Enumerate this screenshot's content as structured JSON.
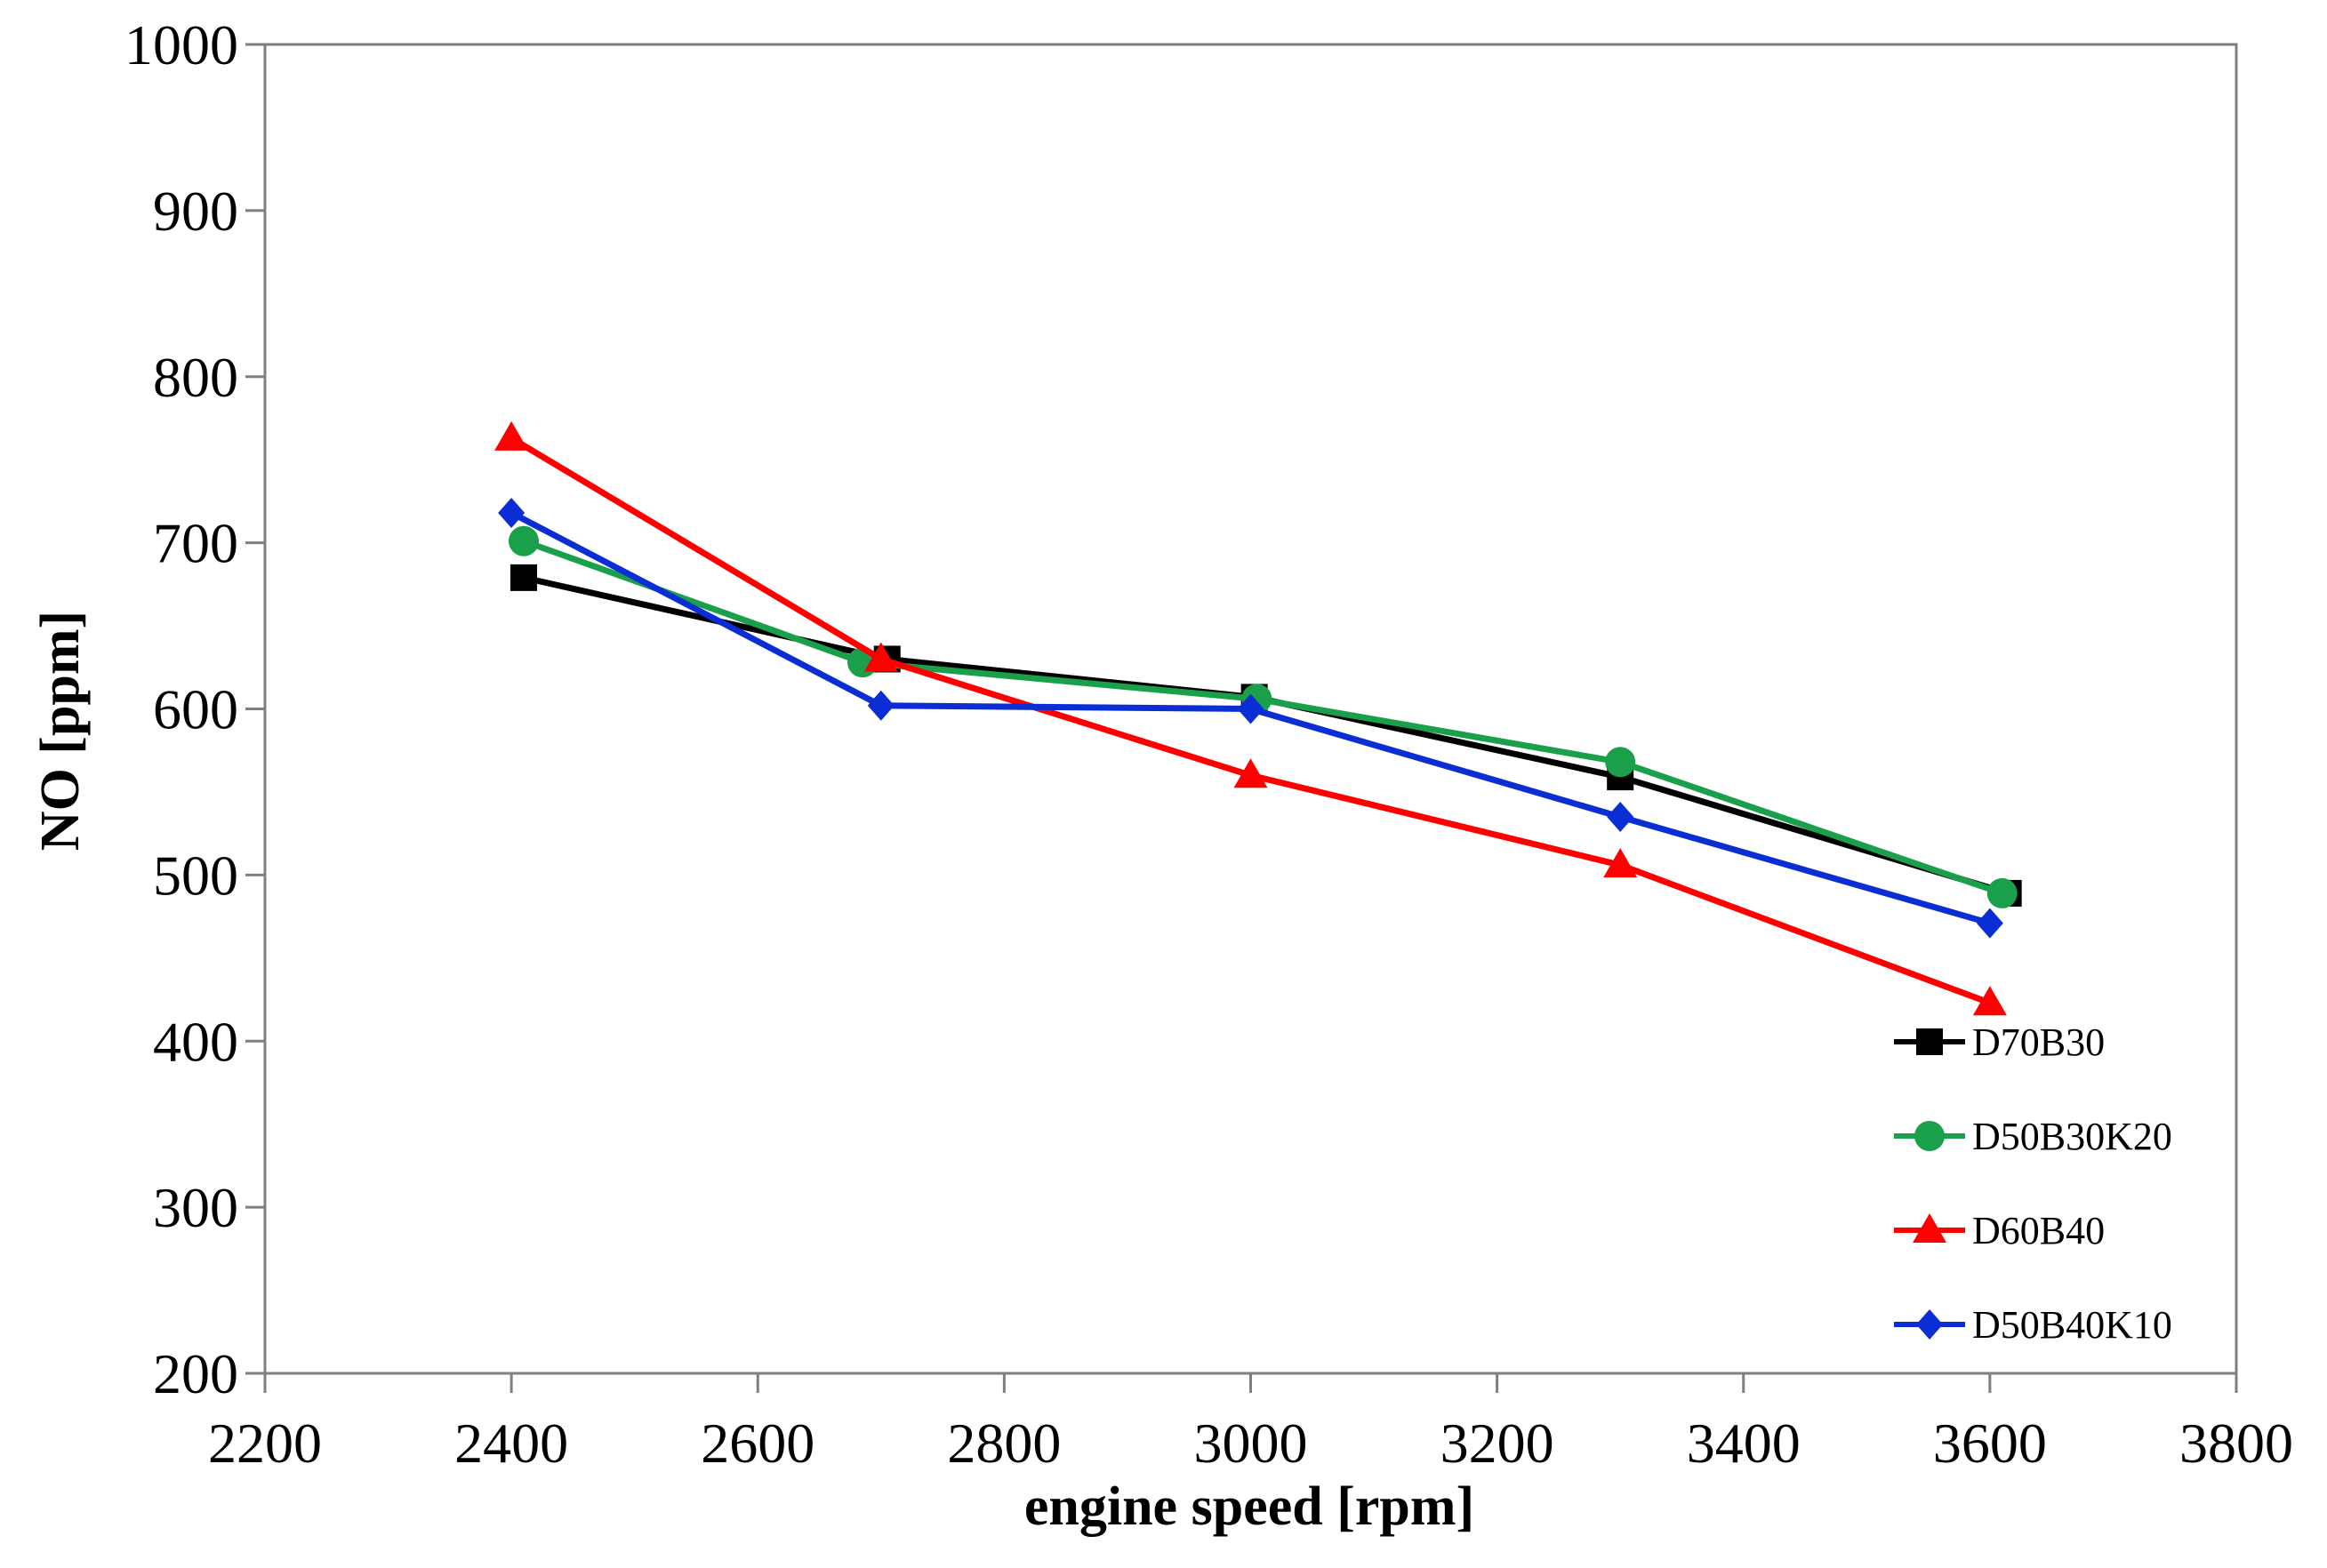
{
  "chart_data": {
    "type": "line",
    "title": "",
    "xlabel": "engine speed [rpm]",
    "ylabel": "NO [ppm]",
    "xlim": [
      2200,
      3800
    ],
    "ylim": [
      200,
      1000
    ],
    "xticks": [
      2200,
      2400,
      2600,
      2800,
      3000,
      3200,
      3400,
      3600,
      3800
    ],
    "yticks": [
      200,
      300,
      400,
      500,
      600,
      700,
      800,
      900,
      1000
    ],
    "grid": false,
    "legend_position": "bottom-right",
    "series": [
      {
        "name": "D70B30",
        "color": "#000000",
        "marker": "square",
        "x": [
          2410,
          2705,
          3003,
          3300,
          3615
        ],
        "y": [
          679,
          630,
          607,
          559,
          489
        ]
      },
      {
        "name": "D50B30K20",
        "color": "#1aa04a",
        "marker": "circle",
        "x": [
          2410,
          2685,
          3005,
          3300,
          3610
        ],
        "y": [
          701,
          628,
          606,
          568,
          489
        ]
      },
      {
        "name": "D60B40",
        "color": "#ff0000",
        "marker": "triangle",
        "x": [
          2400,
          2700,
          3000,
          3300,
          3600
        ],
        "y": [
          763,
          630,
          560,
          506,
          423
        ]
      },
      {
        "name": "D50B40K10",
        "color": "#0a2ed4",
        "marker": "diamond",
        "x": [
          2400,
          2700,
          3000,
          3300,
          3600
        ],
        "y": [
          718,
          602,
          600,
          535,
          471
        ]
      }
    ]
  }
}
